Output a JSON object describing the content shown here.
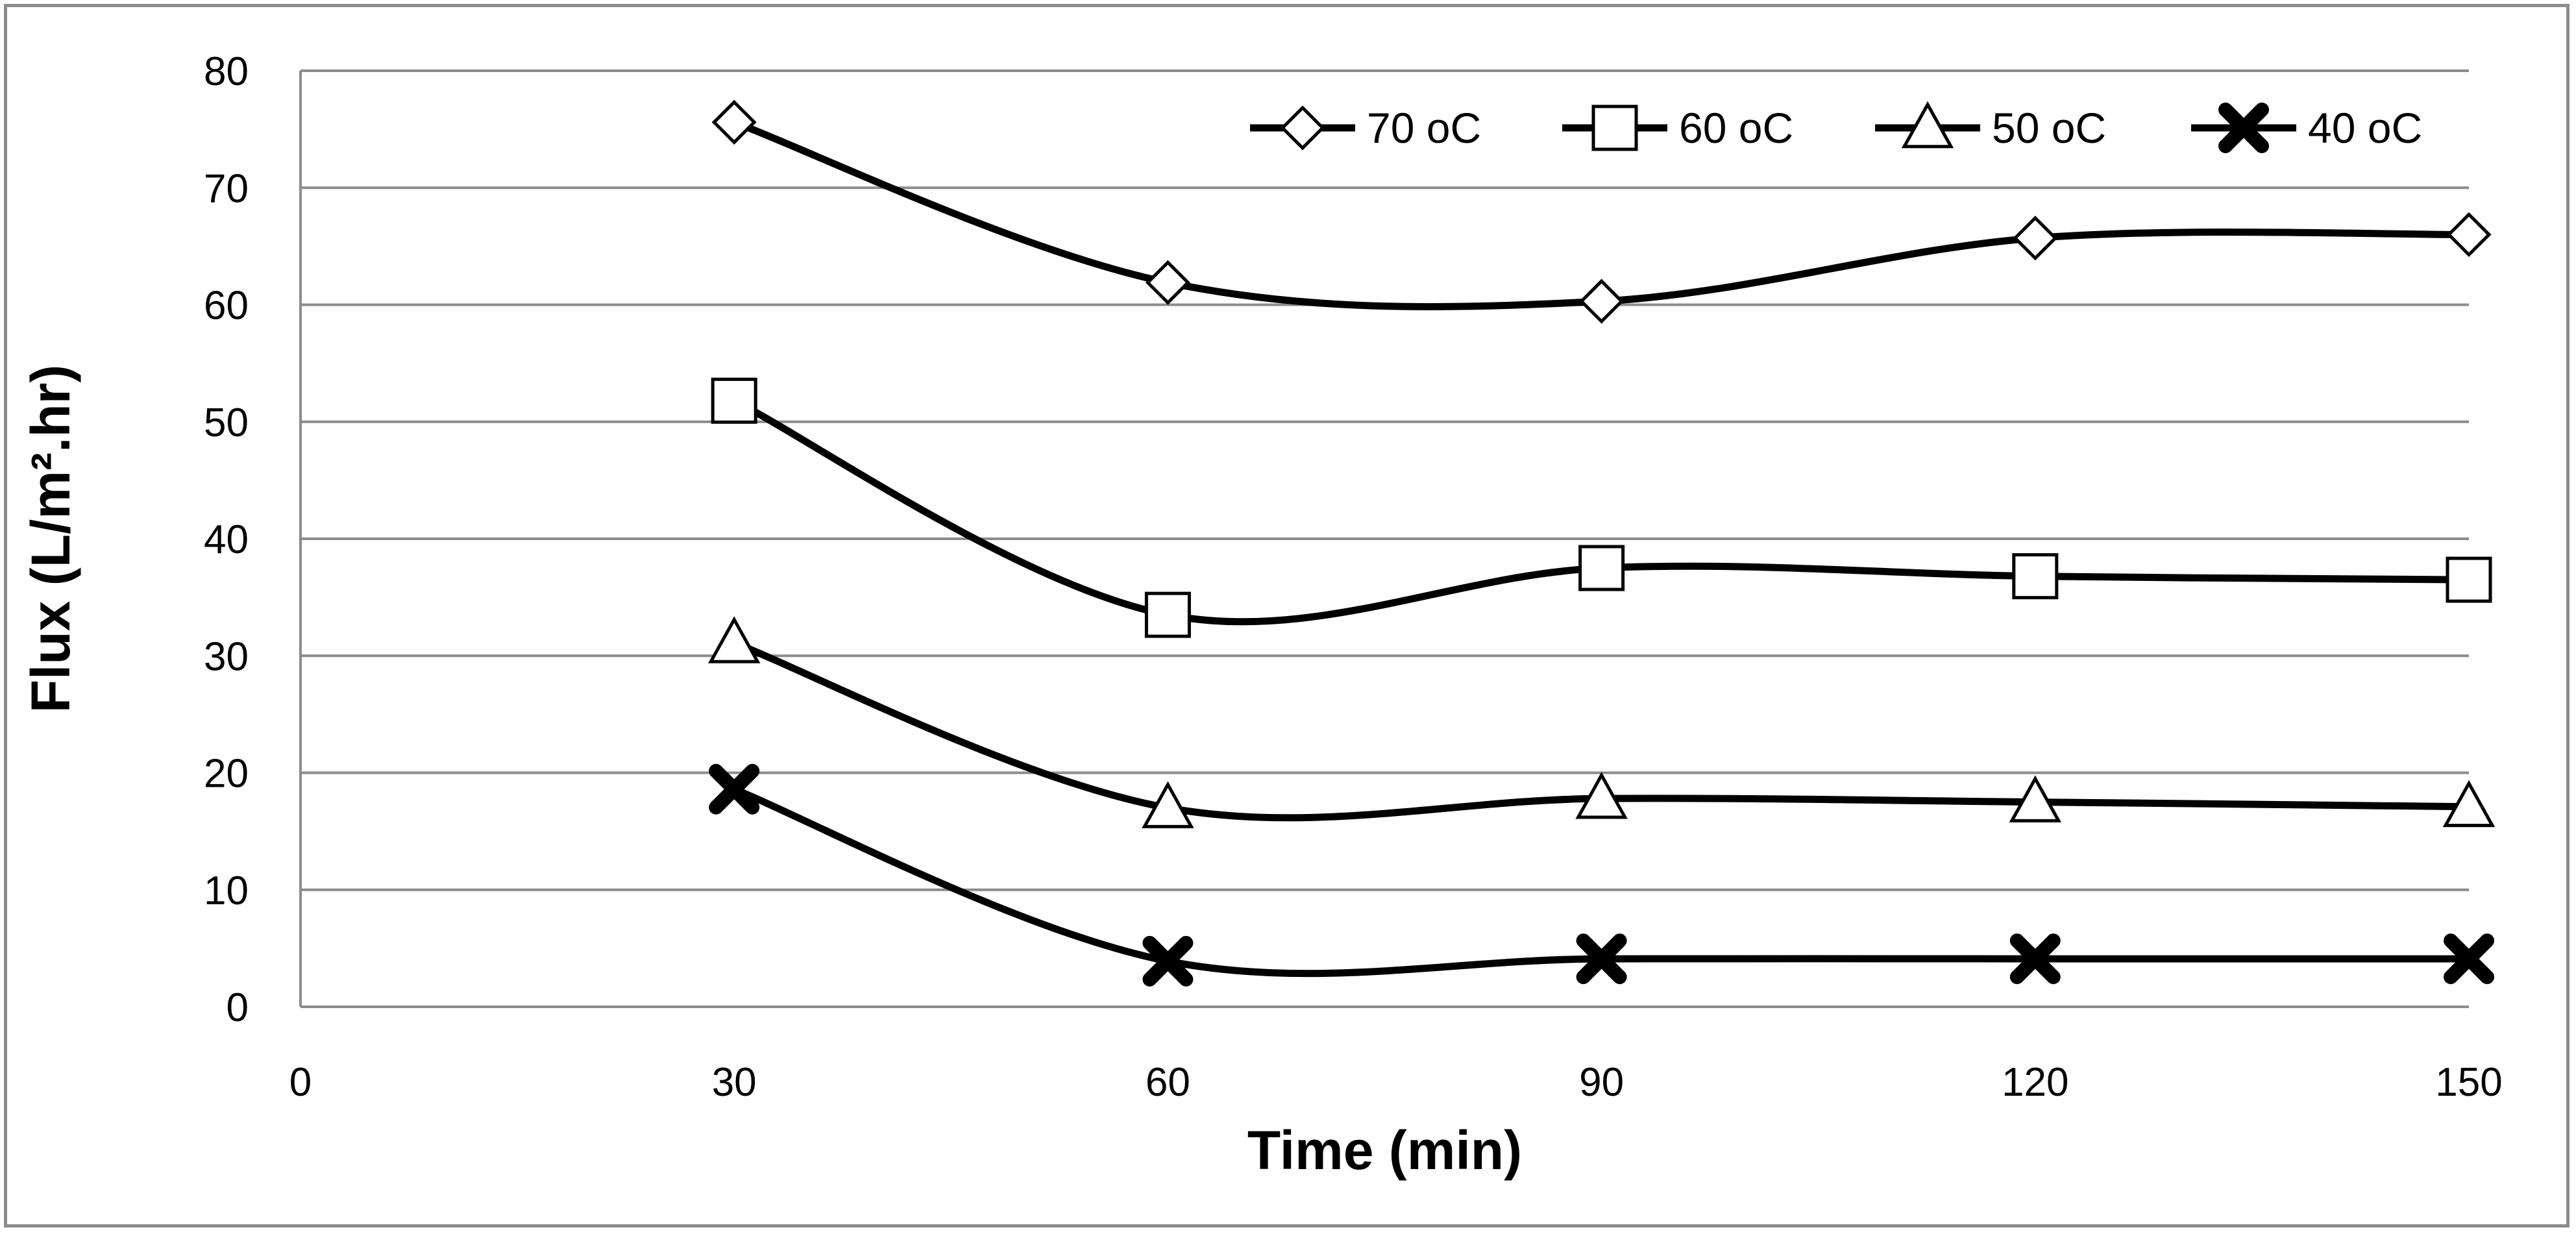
{
  "chart_data": {
    "type": "line",
    "xlabel": "Time (min)",
    "ylabel": "Flux (L/m².hr)",
    "xlim": [
      0,
      150
    ],
    "ylim": [
      0,
      80
    ],
    "x_ticks": [
      "0",
      "30",
      "60",
      "90",
      "120",
      "150"
    ],
    "y_ticks": [
      "0",
      "10",
      "20",
      "30",
      "40",
      "50",
      "60",
      "70",
      "80"
    ],
    "grid": "horizontal",
    "legend_position": "top-right",
    "x": [
      30,
      60,
      90,
      120,
      150
    ],
    "series": [
      {
        "name": "70 oC",
        "marker": "diamond-open",
        "values": [
          75.6,
          61.9,
          60.3,
          65.7,
          66.0
        ]
      },
      {
        "name": "60 oC",
        "marker": "square-open",
        "values": [
          51.8,
          33.5,
          37.5,
          36.8,
          36.5
        ]
      },
      {
        "name": "50 oC",
        "marker": "triangle-open",
        "values": [
          31.1,
          17.0,
          17.8,
          17.5,
          17.1
        ]
      },
      {
        "name": "40 oC",
        "marker": "x-bold",
        "values": [
          18.6,
          3.9,
          4.1,
          4.1,
          4.1
        ]
      }
    ],
    "line_color": "#000000",
    "grid_color": "#8c8c8c"
  }
}
